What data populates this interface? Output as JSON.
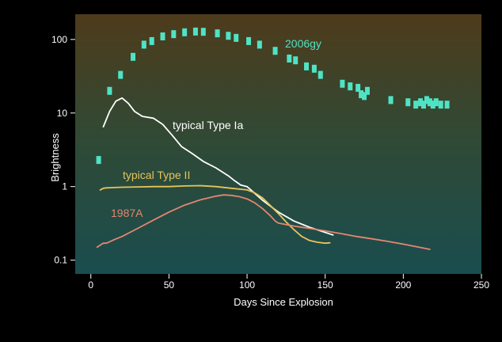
{
  "chart_data": {
    "type": "line",
    "title": "",
    "xlabel": "Days Since Explosion",
    "ylabel": "Brightness",
    "xlim": [
      -10,
      250
    ],
    "ylim": [
      0.065,
      220
    ],
    "yscale": "log",
    "xticks": [
      0,
      50,
      100,
      150,
      200,
      250
    ],
    "yticks": [
      0.1,
      1,
      10,
      100
    ],
    "ytick_labels": [
      "0.1",
      "1",
      "10",
      "100"
    ],
    "grid": false,
    "background": {
      "top": "#4e3b1b",
      "bottom": "#1a4d4f",
      "frame": "#000000"
    },
    "series": [
      {
        "name": "2006gy",
        "kind": "points",
        "color": "#4fe3c5",
        "x": [
          5,
          12,
          19,
          27,
          34,
          39,
          46,
          53,
          60,
          67,
          72,
          81,
          88,
          93,
          101,
          108,
          118,
          127,
          131,
          138,
          143,
          147,
          161,
          166,
          171,
          173,
          175,
          177,
          192,
          203,
          208,
          211,
          213,
          215,
          217,
          219,
          221,
          224,
          228
        ],
        "y": [
          2.3,
          20,
          33,
          58,
          85,
          95,
          110,
          118,
          125,
          128,
          127,
          121,
          112,
          105,
          95,
          85,
          70,
          55,
          52,
          43,
          40,
          33,
          25,
          23,
          22,
          18,
          17,
          20,
          15,
          14,
          13,
          14,
          13,
          15,
          14,
          13,
          14,
          13,
          13
        ]
      },
      {
        "name": "typical Type Ia",
        "kind": "line",
        "color": "#ffffff",
        "x": [
          8,
          12,
          16,
          20,
          24,
          28,
          33,
          40,
          46,
          52,
          58,
          65,
          72,
          80,
          88,
          92,
          96,
          100,
          110,
          120,
          130,
          140,
          155
        ],
        "y": [
          6.5,
          10.5,
          14.5,
          16,
          13.5,
          10.5,
          9,
          8.5,
          7,
          5,
          3.5,
          2.8,
          2.2,
          1.8,
          1.4,
          1.2,
          1.05,
          1.0,
          0.65,
          0.45,
          0.34,
          0.28,
          0.22
        ]
      },
      {
        "name": "typical Type II",
        "kind": "line",
        "color": "#e8c35a",
        "x": [
          6,
          8,
          10,
          15,
          20,
          30,
          40,
          50,
          60,
          70,
          80,
          90,
          100,
          105,
          110,
          115,
          120,
          125,
          130,
          135,
          140,
          145,
          150,
          153
        ],
        "y": [
          0.9,
          0.95,
          0.96,
          0.97,
          0.98,
          0.99,
          1.0,
          1.0,
          1.02,
          1.03,
          1.0,
          0.95,
          0.9,
          0.82,
          0.7,
          0.55,
          0.43,
          0.33,
          0.26,
          0.21,
          0.185,
          0.175,
          0.17,
          0.172
        ]
      },
      {
        "name": "1987A",
        "kind": "line",
        "color": "#e48670",
        "x": [
          4,
          6,
          8,
          10,
          15,
          20,
          30,
          40,
          50,
          60,
          70,
          80,
          85,
          90,
          95,
          100,
          105,
          110,
          115,
          118,
          120,
          130,
          140,
          150,
          160,
          170,
          180,
          190,
          200,
          210,
          217
        ],
        "y": [
          0.15,
          0.16,
          0.17,
          0.17,
          0.19,
          0.21,
          0.27,
          0.35,
          0.45,
          0.56,
          0.66,
          0.74,
          0.77,
          0.76,
          0.73,
          0.68,
          0.6,
          0.5,
          0.4,
          0.34,
          0.32,
          0.29,
          0.27,
          0.25,
          0.23,
          0.21,
          0.195,
          0.18,
          0.165,
          0.15,
          0.14
        ]
      }
    ]
  }
}
